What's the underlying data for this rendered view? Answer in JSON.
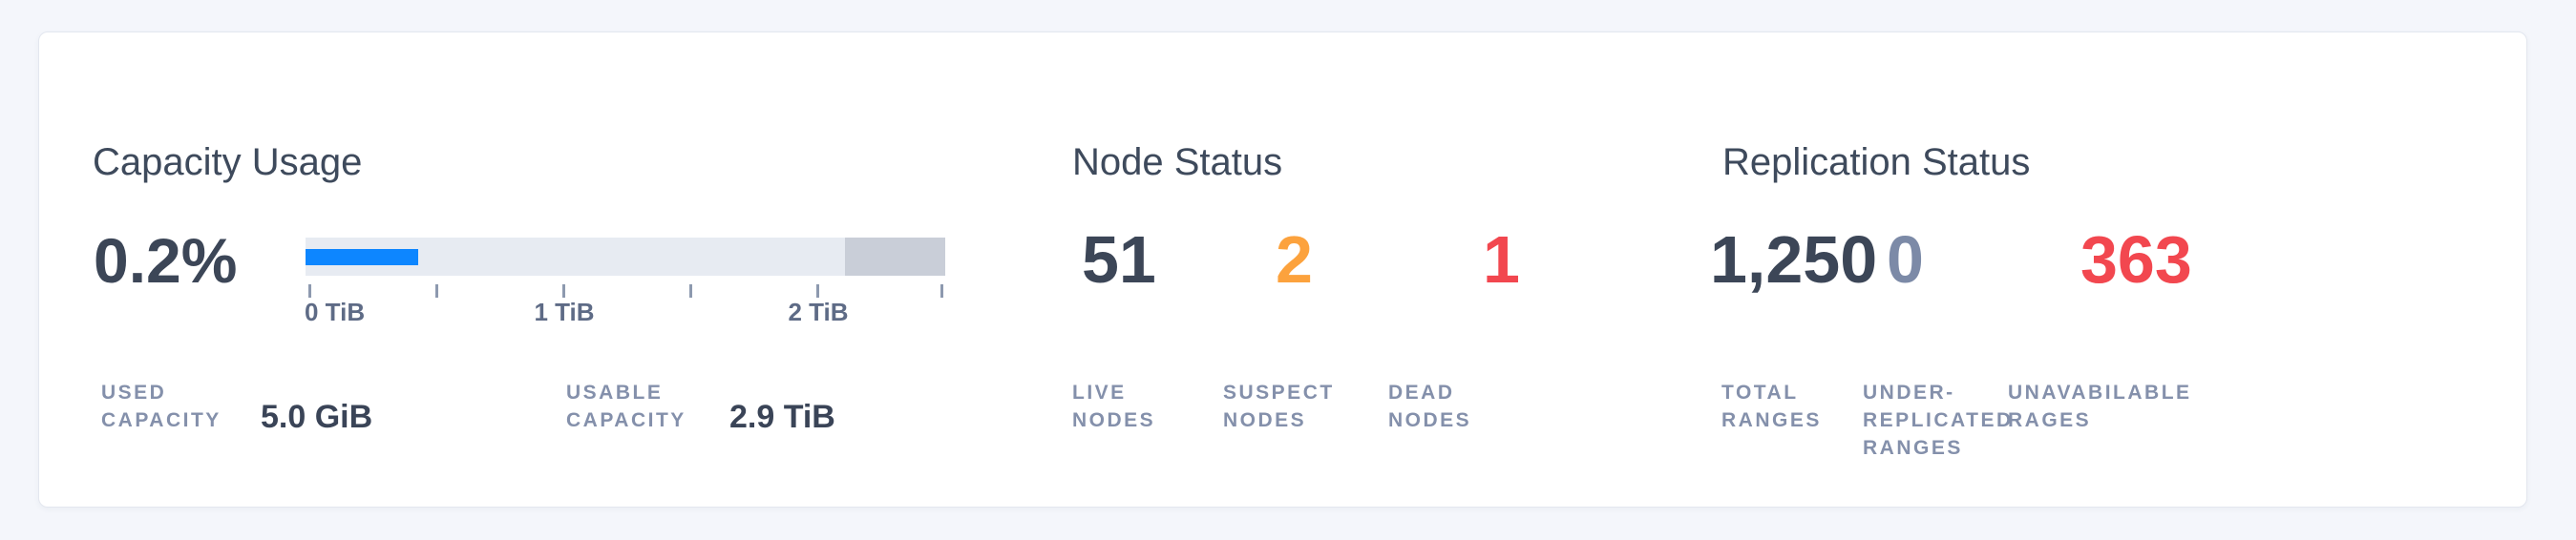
{
  "colors": {
    "background": "#f4f6fb",
    "card": "#ffffff",
    "title": "#3e4a5c",
    "value_default": "#3c4657",
    "value_warning": "#fca23d",
    "value_danger": "#f2474f",
    "value_muted": "#7c8aa7",
    "label": "#8490ab",
    "bar_used_fill": "#0d86ff",
    "bar_track": "#e7ebf2",
    "bar_reserved_segment": "#c9ced8"
  },
  "capacity": {
    "title": "Capacity Usage",
    "percent_used": "0.2%",
    "chart": {
      "type": "bar",
      "axis_unit": "TiB",
      "tick_labels": [
        "0 TiB",
        "1 TiB",
        "2 TiB"
      ],
      "minor_ticks_at": [
        0.5,
        1.5,
        2.5
      ],
      "used_fraction_of_track": 0.176,
      "reserved_fraction_of_track": 0.157
    },
    "details": [
      {
        "label": "USED\nCAPACITY",
        "value": "5.0 GiB"
      },
      {
        "label": "USABLE\nCAPACITY",
        "value": "2.9 TiB"
      }
    ]
  },
  "nodes": {
    "title": "Node Status",
    "stats": [
      {
        "value": "51",
        "label": "LIVE\nNODES",
        "status": "healthy"
      },
      {
        "value": "2",
        "label": "SUSPECT\nNODES",
        "status": "warning"
      },
      {
        "value": "1",
        "label": "DEAD\nNODES",
        "status": "danger"
      }
    ]
  },
  "replication": {
    "title": "Replication Status",
    "stats": [
      {
        "value": "1,250",
        "label": "TOTAL\nRANGES",
        "status": "healthy"
      },
      {
        "value": "0",
        "label": "UNDER-\nREPLICATED\nRANGES",
        "status": "muted"
      },
      {
        "value": "363",
        "label": "UNAVABILABLE\nRAGES",
        "status": "danger"
      }
    ]
  }
}
